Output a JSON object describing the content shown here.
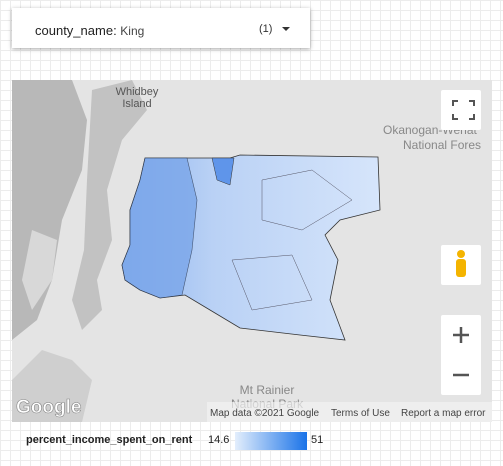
{
  "filter": {
    "field": "county_name",
    "value": "King",
    "count": "(1)"
  },
  "map": {
    "labels": [
      "Whidbey",
      "Island",
      "Okanogan-Wenat",
      "National Fores",
      "Mt Rainier",
      "National Park"
    ],
    "logo": "Google",
    "attribution": "Map data ©2021 Google",
    "terms": "Terms of Use",
    "report": "Report a map error"
  },
  "legend": {
    "metric": "percent_income_spent_on_rent",
    "min": 14.6,
    "max": 51
  }
}
